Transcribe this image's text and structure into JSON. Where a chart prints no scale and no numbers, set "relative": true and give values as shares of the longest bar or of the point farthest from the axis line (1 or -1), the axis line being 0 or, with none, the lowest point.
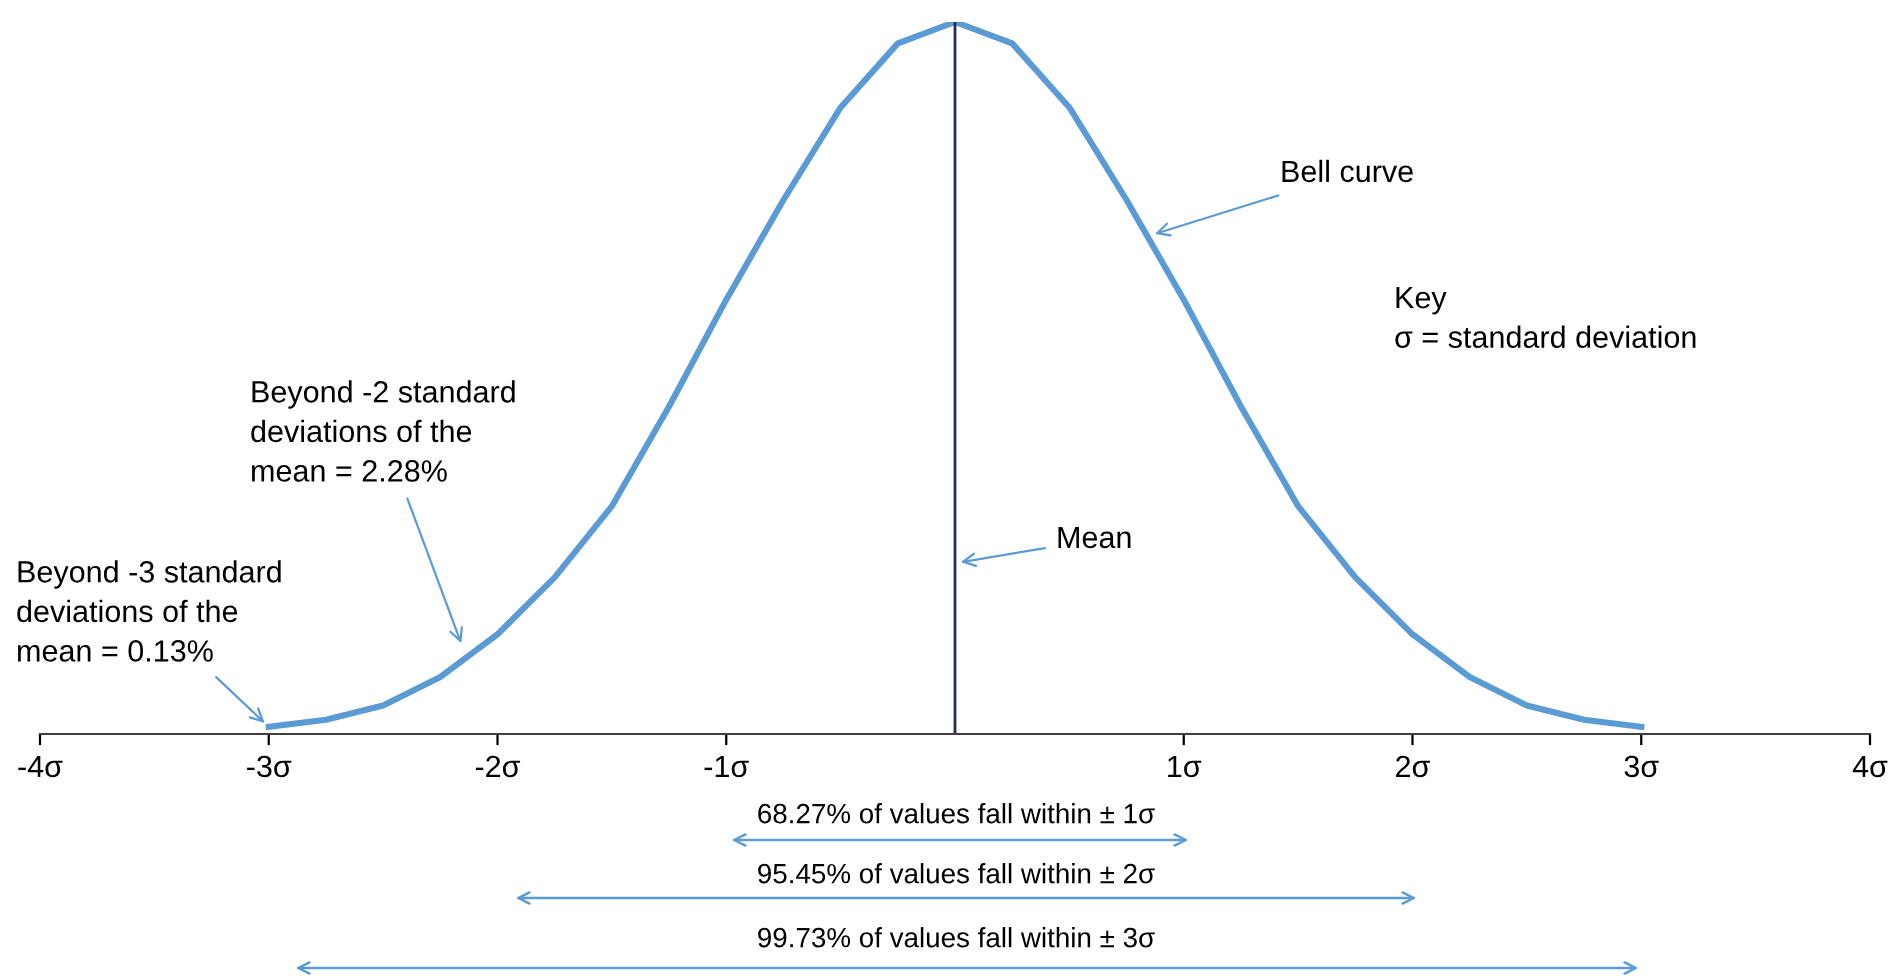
{
  "chart_data": {
    "type": "line",
    "relative": true,
    "x": [
      -3,
      -2.75,
      -2.5,
      -2.25,
      -2,
      -1.75,
      -1.5,
      -1.25,
      -1,
      -0.75,
      -0.5,
      -0.25,
      0,
      0.25,
      0.5,
      0.75,
      1,
      1.25,
      1.5,
      1.75,
      2,
      2.25,
      2.5,
      2.75,
      3
    ],
    "series": [
      {
        "color": "#5b9bd5",
        "values": [
          0.01,
          0.02,
          0.04,
          0.08,
          0.14,
          0.22,
          0.32,
          0.46,
          0.61,
          0.75,
          0.88,
          0.97,
          1,
          0.97,
          0.88,
          0.75,
          0.61,
          0.46,
          0.32,
          0.22,
          0.14,
          0.08,
          0.04,
          0.02,
          0.01
        ]
      }
    ],
    "xlim": [
      -4,
      4
    ],
    "xticks": [
      {
        "value": -4,
        "label": "-4σ"
      },
      {
        "value": -3,
        "label": "-3σ"
      },
      {
        "value": -2,
        "label": "-2σ"
      },
      {
        "value": -1,
        "label": "-1σ"
      },
      {
        "value": 1,
        "label": "1σ"
      },
      {
        "value": 2,
        "label": "2σ"
      },
      {
        "value": 3,
        "label": "3σ"
      },
      {
        "value": 4,
        "label": "4σ"
      }
    ],
    "tick_labels": "x",
    "grid": false,
    "marker": "none",
    "line_style": "solid",
    "ref_lines": [
      {
        "axis": "x",
        "value": 0,
        "color": "#1f2d5a"
      }
    ],
    "annotations": [
      {
        "text": "Bell curve",
        "x": 0.85,
        "y": 0.7
      },
      {
        "text": "Mean",
        "x": 0,
        "y": 0.24
      },
      "68.27% of values fall within ± 1σ",
      "95.45% of values fall within ± 2σ",
      "99.73% of values fall within ± 3σ",
      "Key\nσ = standard deviation",
      {
        "text": "Beyond -2 standard\ndeviations of the\nmean = 2.28%",
        "x": -2.15,
        "y": 0.12
      },
      {
        "text": "Beyond -3 standard\ndeviations of the\nmean = 0.13%",
        "x": -3,
        "y": 0.01
      }
    ]
  }
}
